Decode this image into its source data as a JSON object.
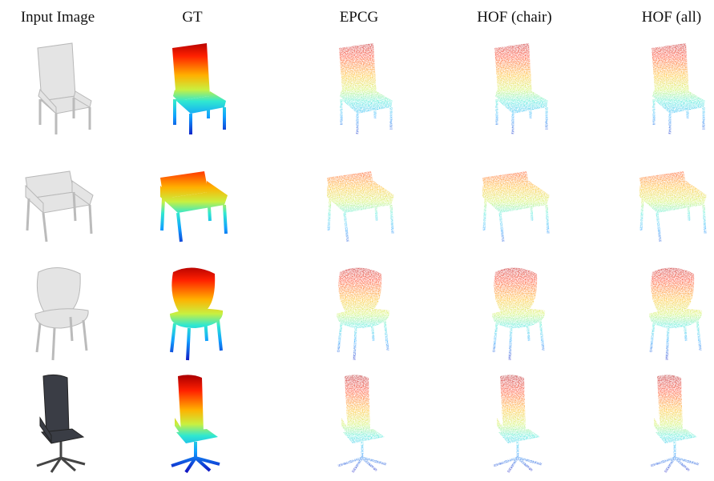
{
  "figure": {
    "column_headers": [
      "Input Image",
      "GT",
      "EPCG",
      "HOF (chair)",
      "HOF (all)"
    ]
  }
}
